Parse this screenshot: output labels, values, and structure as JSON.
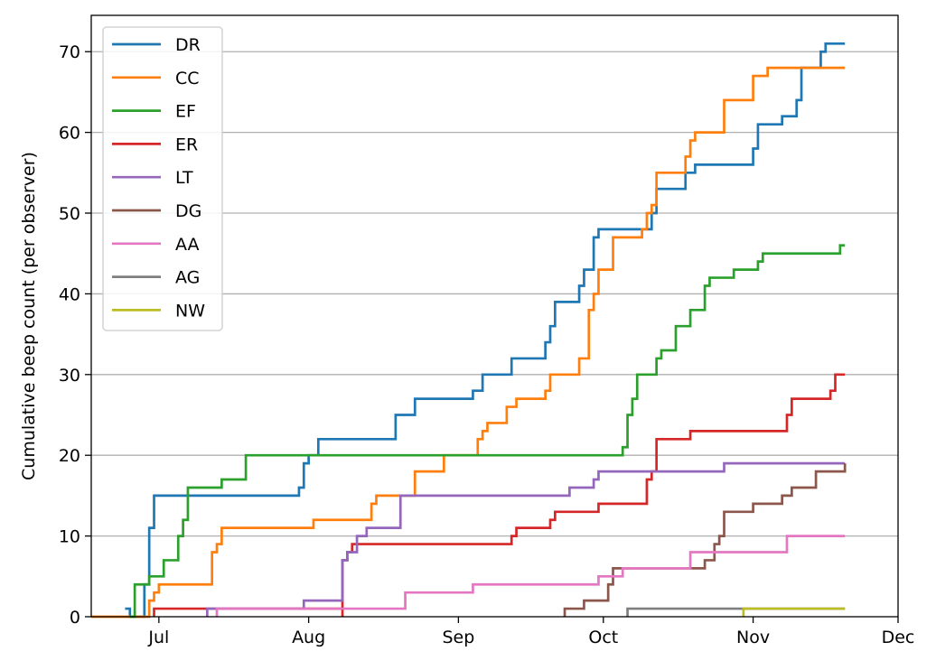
{
  "chart_data": {
    "type": "line",
    "step": "post",
    "xlabel": "",
    "ylabel": "Cumulative beep count (per observer)",
    "x_ticks": [
      {
        "date": "2023-07-01",
        "label": "Jul"
      },
      {
        "date": "2023-08-01",
        "label": "Aug"
      },
      {
        "date": "2023-09-01",
        "label": "Sep"
      },
      {
        "date": "2023-10-01",
        "label": "Oct"
      },
      {
        "date": "2023-11-01",
        "label": "Nov"
      },
      {
        "date": "2023-12-01",
        "label": "Dec"
      }
    ],
    "xlim": [
      "2023-06-17",
      "2023-12-01"
    ],
    "y_ticks": [
      0,
      10,
      20,
      30,
      40,
      50,
      60,
      70
    ],
    "ylim": [
      0,
      74.5
    ],
    "grid": "y",
    "legend_position": "top-left",
    "series": [
      {
        "name": "DR",
        "color": "#1f77b4",
        "points": [
          [
            "2023-06-24",
            1
          ],
          [
            "2023-06-25",
            0
          ],
          [
            "2023-06-28",
            4
          ],
          [
            "2023-06-29",
            11
          ],
          [
            "2023-06-30",
            15
          ],
          [
            "2023-07-30",
            16
          ],
          [
            "2023-07-31",
            19
          ],
          [
            "2023-08-01",
            20
          ],
          [
            "2023-08-03",
            22
          ],
          [
            "2023-08-19",
            25
          ],
          [
            "2023-08-23",
            27
          ],
          [
            "2023-09-04",
            28
          ],
          [
            "2023-09-06",
            30
          ],
          [
            "2023-09-12",
            32
          ],
          [
            "2023-09-19",
            34
          ],
          [
            "2023-09-20",
            36
          ],
          [
            "2023-09-21",
            39
          ],
          [
            "2023-09-26",
            41
          ],
          [
            "2023-09-27",
            43
          ],
          [
            "2023-09-29",
            47
          ],
          [
            "2023-09-30",
            48
          ],
          [
            "2023-10-11",
            50
          ],
          [
            "2023-10-12",
            53
          ],
          [
            "2023-10-18",
            55
          ],
          [
            "2023-10-20",
            56
          ],
          [
            "2023-11-01",
            58
          ],
          [
            "2023-11-02",
            61
          ],
          [
            "2023-11-07",
            62
          ],
          [
            "2023-11-10",
            64
          ],
          [
            "2023-11-11",
            68
          ],
          [
            "2023-11-14",
            68
          ],
          [
            "2023-11-15",
            70
          ],
          [
            "2023-11-16",
            71
          ],
          [
            "2023-11-20",
            71
          ]
        ]
      },
      {
        "name": "CC",
        "color": "#ff7f0e",
        "points": [
          [
            "2023-06-17",
            0
          ],
          [
            "2023-06-29",
            2
          ],
          [
            "2023-06-30",
            3
          ],
          [
            "2023-07-01",
            4
          ],
          [
            "2023-07-12",
            8
          ],
          [
            "2023-07-13",
            9
          ],
          [
            "2023-07-14",
            11
          ],
          [
            "2023-07-25",
            11
          ],
          [
            "2023-08-02",
            12
          ],
          [
            "2023-08-14",
            14
          ],
          [
            "2023-08-15",
            15
          ],
          [
            "2023-08-23",
            18
          ],
          [
            "2023-08-29",
            20
          ],
          [
            "2023-09-05",
            22
          ],
          [
            "2023-09-06",
            23
          ],
          [
            "2023-09-07",
            24
          ],
          [
            "2023-09-11",
            26
          ],
          [
            "2023-09-13",
            27
          ],
          [
            "2023-09-19",
            28
          ],
          [
            "2023-09-20",
            30
          ],
          [
            "2023-09-26",
            32
          ],
          [
            "2023-09-28",
            38
          ],
          [
            "2023-09-29",
            40
          ],
          [
            "2023-09-30",
            43
          ],
          [
            "2023-10-03",
            47
          ],
          [
            "2023-10-09",
            48
          ],
          [
            "2023-10-10",
            50
          ],
          [
            "2023-10-11",
            51
          ],
          [
            "2023-10-12",
            55
          ],
          [
            "2023-10-18",
            57
          ],
          [
            "2023-10-19",
            59
          ],
          [
            "2023-10-20",
            60
          ],
          [
            "2023-10-26",
            64
          ],
          [
            "2023-11-01",
            67
          ],
          [
            "2023-11-04",
            68
          ],
          [
            "2023-11-20",
            68
          ]
        ]
      },
      {
        "name": "EF",
        "color": "#2ca02c",
        "points": [
          [
            "2023-06-25",
            0
          ],
          [
            "2023-06-26",
            4
          ],
          [
            "2023-06-29",
            5
          ],
          [
            "2023-07-02",
            7
          ],
          [
            "2023-07-05",
            10
          ],
          [
            "2023-07-06",
            12
          ],
          [
            "2023-07-07",
            16
          ],
          [
            "2023-07-14",
            17
          ],
          [
            "2023-07-19",
            20
          ],
          [
            "2023-09-05",
            20
          ],
          [
            "2023-10-04",
            20
          ],
          [
            "2023-10-05",
            21
          ],
          [
            "2023-10-06",
            25
          ],
          [
            "2023-10-07",
            27
          ],
          [
            "2023-10-08",
            30
          ],
          [
            "2023-10-12",
            32
          ],
          [
            "2023-10-13",
            33
          ],
          [
            "2023-10-16",
            36
          ],
          [
            "2023-10-19",
            38
          ],
          [
            "2023-10-22",
            41
          ],
          [
            "2023-10-23",
            42
          ],
          [
            "2023-10-28",
            43
          ],
          [
            "2023-11-02",
            44
          ],
          [
            "2023-11-03",
            45
          ],
          [
            "2023-11-19",
            46
          ],
          [
            "2023-11-20",
            46
          ]
        ]
      },
      {
        "name": "ER",
        "color": "#d62728",
        "points": [
          [
            "2023-06-30",
            0
          ],
          [
            "2023-06-30",
            1
          ],
          [
            "2023-07-10",
            1
          ],
          [
            "2023-08-08",
            0
          ],
          [
            "2023-08-08",
            7
          ],
          [
            "2023-08-09",
            8
          ],
          [
            "2023-08-10",
            9
          ],
          [
            "2023-09-12",
            10
          ],
          [
            "2023-09-13",
            11
          ],
          [
            "2023-09-20",
            12
          ],
          [
            "2023-09-21",
            13
          ],
          [
            "2023-09-30",
            14
          ],
          [
            "2023-10-01",
            14
          ],
          [
            "2023-10-10",
            17
          ],
          [
            "2023-10-11",
            18
          ],
          [
            "2023-10-12",
            22
          ],
          [
            "2023-10-19",
            23
          ],
          [
            "2023-10-29",
            23
          ],
          [
            "2023-11-08",
            25
          ],
          [
            "2023-11-09",
            27
          ],
          [
            "2023-11-17",
            28
          ],
          [
            "2023-11-18",
            30
          ],
          [
            "2023-11-20",
            30
          ]
        ]
      },
      {
        "name": "LT",
        "color": "#9467bd",
        "points": [
          [
            "2023-07-11",
            0
          ],
          [
            "2023-07-11",
            1
          ],
          [
            "2023-07-31",
            2
          ],
          [
            "2023-08-08",
            7
          ],
          [
            "2023-08-09",
            8
          ],
          [
            "2023-08-11",
            10
          ],
          [
            "2023-08-13",
            11
          ],
          [
            "2023-08-20",
            15
          ],
          [
            "2023-09-24",
            16
          ],
          [
            "2023-09-29",
            17
          ],
          [
            "2023-09-30",
            18
          ],
          [
            "2023-10-26",
            19
          ],
          [
            "2023-11-20",
            19
          ]
        ]
      },
      {
        "name": "DG",
        "color": "#8c564b",
        "points": [
          [
            "2023-09-23",
            0
          ],
          [
            "2023-09-23",
            1
          ],
          [
            "2023-09-27",
            2
          ],
          [
            "2023-10-02",
            4
          ],
          [
            "2023-10-03",
            6
          ],
          [
            "2023-10-04",
            6
          ],
          [
            "2023-10-21",
            6
          ],
          [
            "2023-10-22",
            7
          ],
          [
            "2023-10-24",
            9
          ],
          [
            "2023-10-25",
            10
          ],
          [
            "2023-10-26",
            13
          ],
          [
            "2023-11-01",
            14
          ],
          [
            "2023-11-07",
            15
          ],
          [
            "2023-11-09",
            16
          ],
          [
            "2023-11-14",
            18
          ],
          [
            "2023-11-20",
            19
          ]
        ]
      },
      {
        "name": "AA",
        "color": "#e377c2",
        "points": [
          [
            "2023-07-13",
            0
          ],
          [
            "2023-07-13",
            1
          ],
          [
            "2023-08-21",
            3
          ],
          [
            "2023-09-04",
            4
          ],
          [
            "2023-09-30",
            5
          ],
          [
            "2023-10-05",
            6
          ],
          [
            "2023-10-19",
            8
          ],
          [
            "2023-11-08",
            10
          ],
          [
            "2023-11-20",
            10
          ]
        ]
      },
      {
        "name": "AG",
        "color": "#7f7f7f",
        "points": [
          [
            "2023-10-06",
            0
          ],
          [
            "2023-10-06",
            1
          ],
          [
            "2023-11-20",
            1
          ]
        ]
      },
      {
        "name": "NW",
        "color": "#bcbd22",
        "points": [
          [
            "2023-10-30",
            0
          ],
          [
            "2023-10-30",
            1
          ],
          [
            "2023-11-20",
            1
          ]
        ]
      }
    ]
  }
}
